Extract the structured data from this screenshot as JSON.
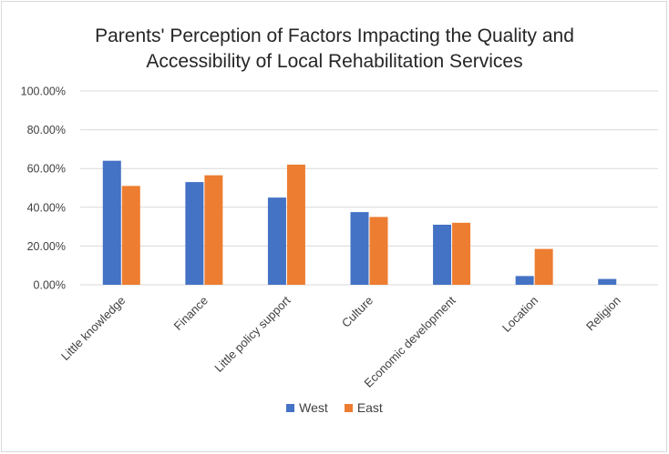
{
  "chart_data": {
    "type": "bar",
    "title_lines": [
      "Parents' Perception of Factors Impacting the Quality and",
      "Accessibility of Local Rehabilitation Services"
    ],
    "categories": [
      "Little knowledge",
      "Finance",
      "Little policy support",
      "Culture",
      "Economic development",
      "Location",
      "Religion"
    ],
    "series": [
      {
        "name": "West",
        "color": "#4472c4",
        "values": [
          64.0,
          53.0,
          45.0,
          37.5,
          31.0,
          4.5,
          3.0
        ]
      },
      {
        "name": "East",
        "color": "#ed7d31",
        "values": [
          51.0,
          56.5,
          62.0,
          35.0,
          32.0,
          18.5,
          0
        ]
      }
    ],
    "ylim": [
      0,
      100
    ],
    "yticks": [
      "0.00%",
      "20.00%",
      "40.00%",
      "60.00%",
      "80.00%",
      "100.00%"
    ],
    "ytick_values": [
      0,
      20,
      40,
      60,
      80,
      100
    ],
    "grid": true,
    "legend_position": "bottom"
  }
}
